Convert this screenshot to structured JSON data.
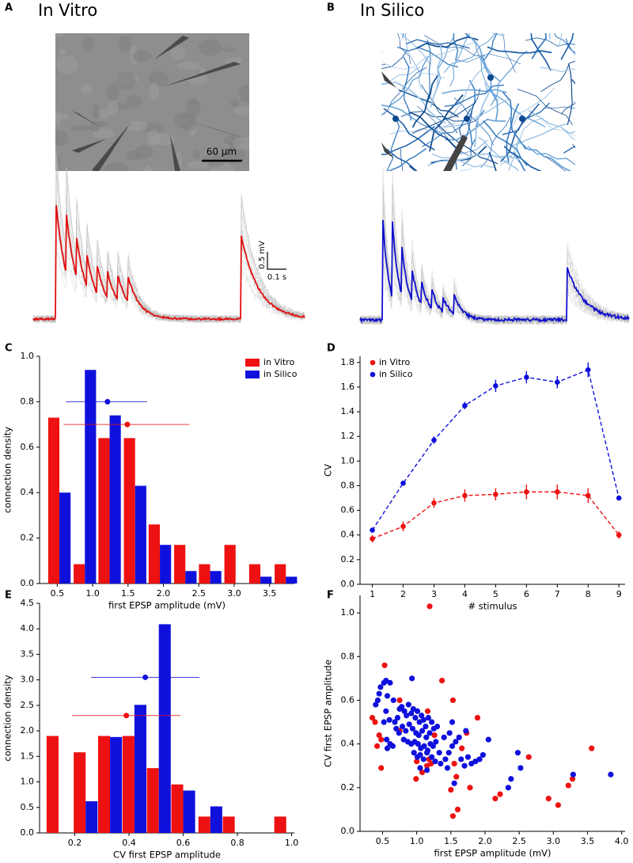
{
  "figure": {
    "panels": [
      {
        "label": "A",
        "title": "In Vitro",
        "image_scale": "60 μm",
        "trace_scale_y": "0.5 mV",
        "trace_scale_x": "0.1 s"
      },
      {
        "label": "B",
        "title": "In Silico"
      }
    ]
  },
  "chart_data": [
    {
      "panel_label": "C",
      "type": "bar",
      "xlabel": "first EPSP amplitude (mV)",
      "ylabel": "connection density",
      "x": [
        0.53,
        0.89,
        1.24,
        1.6,
        1.95,
        2.31,
        2.66,
        3.02,
        3.37,
        3.73
      ],
      "series": [
        {
          "name": "in Vitro",
          "color": "#ee1111",
          "values": [
            0.73,
            0.085,
            0.64,
            0.64,
            0.26,
            0.17,
            0.085,
            0.17,
            0.085,
            0.085
          ],
          "mean_x": 1.49,
          "mean_y": 0.7,
          "spread": [
            0.59,
            2.37
          ]
        },
        {
          "name": "in Silico",
          "color": "#1010dd",
          "values": [
            0.4,
            0.94,
            0.74,
            0.43,
            0.17,
            0.055,
            0.055,
            0,
            0.03,
            0.03
          ],
          "mean_x": 1.21,
          "mean_y": 0.8,
          "spread": [
            0.62,
            1.77
          ]
        }
      ],
      "xlim": [
        0.25,
        3.85
      ],
      "ylim": [
        0,
        1.0
      ],
      "xticks": [
        0.5,
        {
          "value": 1,
          "label": "1.0"
        },
        1.5,
        {
          "value": 2,
          "label": "2.0"
        },
        2.5,
        {
          "value": 3,
          "label": "3.0"
        },
        3.5
      ],
      "yticks": [
        {
          "value": 0,
          "label": "0.0"
        },
        0.2,
        0.4,
        0.6,
        0.8,
        {
          "value": 1,
          "label": "1.0"
        }
      ],
      "legend": "upper right"
    },
    {
      "panel_label": "D",
      "type": "line",
      "xlabel": "# stimulus",
      "ylabel": "CV",
      "x": [
        1,
        2,
        3,
        4,
        5,
        6,
        7,
        8,
        9
      ],
      "series": [
        {
          "name": "in Vitro",
          "color": "#ee1111",
          "values": [
            0.37,
            0.47,
            0.66,
            0.72,
            0.73,
            0.75,
            0.75,
            0.72,
            0.4
          ],
          "errors": [
            0.03,
            0.04,
            0.04,
            0.05,
            0.05,
            0.06,
            0.06,
            0.06,
            0.03
          ]
        },
        {
          "name": "in Silico",
          "color": "#1010dd",
          "values": [
            0.44,
            0.82,
            1.17,
            1.45,
            1.61,
            1.68,
            1.64,
            1.74,
            0.7
          ],
          "errors": [
            0.01,
            0.01,
            0.03,
            0.03,
            0.05,
            0.05,
            0.05,
            0.06,
            0.01
          ]
        }
      ],
      "linestyle": "dashed",
      "xlim": [
        0.6,
        9.2
      ],
      "ylim": [
        0,
        1.85
      ],
      "xticks": [
        1,
        2,
        3,
        4,
        5,
        6,
        7,
        8,
        9
      ],
      "yticks": [
        {
          "value": 0,
          "label": "0.0"
        },
        0.2,
        0.4,
        0.6,
        0.8,
        {
          "value": 1,
          "label": "1.0"
        },
        1.2,
        1.4,
        1.6,
        1.8
      ],
      "legend": "upper left"
    },
    {
      "panel_label": "E",
      "type": "bar",
      "xlabel": "CV first EPSP amplitude",
      "ylabel": "connection density",
      "x": [
        0.14,
        0.24,
        0.33,
        0.42,
        0.51,
        0.6,
        0.7,
        0.79,
        0.88,
        0.98
      ],
      "series": [
        {
          "name": "in Vitro",
          "color": "#ee1111",
          "values": [
            1.9,
            1.58,
            1.9,
            1.9,
            1.27,
            0.95,
            0.32,
            0.32,
            0,
            0.32
          ],
          "mean_x": 0.39,
          "mean_y": 2.3,
          "spread": [
            0.19,
            0.59
          ]
        },
        {
          "name": "in Silico",
          "color": "#1010dd",
          "values": [
            0,
            0.62,
            1.88,
            2.51,
            4.09,
            0.83,
            0.52,
            0,
            0,
            0
          ],
          "mean_x": 0.46,
          "mean_y": 3.05,
          "spread": [
            0.26,
            0.66
          ]
        }
      ],
      "xlim": [
        0.07,
        1.01
      ],
      "ylim": [
        0,
        4.5
      ],
      "xticks": [
        0.2,
        0.4,
        0.6,
        0.8,
        {
          "value": 1,
          "label": "1.0"
        }
      ],
      "yticks": [
        {
          "value": 0,
          "label": "0.0"
        },
        0.5,
        {
          "value": 1,
          "label": "1.0"
        },
        1.5,
        {
          "value": 2,
          "label": "2.0"
        },
        2.5,
        {
          "value": 3,
          "label": "3.0"
        },
        3.5,
        {
          "value": 4,
          "label": "4.0"
        },
        4.5
      ]
    },
    {
      "panel_label": "F",
      "type": "scatter",
      "xlabel": "first EPSP amplitude (mV)",
      "ylabel": "CV first EPSP amplitude",
      "series": [
        {
          "color": "#ee1111",
          "x": [
            1.19,
            0.53,
            1.37,
            0.35,
            0.39,
            0.75,
            1.53,
            1.89,
            1.16,
            0.45,
            0.48,
            0.42,
            0.48,
            0.75,
            1.18,
            1.21,
            1.15,
            0.99,
            1.08,
            1.55,
            1.5,
            1.53,
            1.6,
            1.58,
            1.66,
            1.73,
            1.78,
            2.15,
            2.22,
            2.64,
            2.93,
            3.07,
            3.22,
            3.28,
            3.56,
            1.26,
            1.0
          ],
          "values": [
            1.03,
            0.76,
            0.69,
            0.52,
            0.5,
            0.6,
            0.6,
            0.52,
            0.55,
            0.44,
            0.42,
            0.39,
            0.29,
            0.46,
            0.33,
            0.31,
            0.3,
            0.24,
            0.27,
            0.31,
            0.19,
            0.07,
            0.1,
            0.25,
            0.38,
            0.45,
            0.2,
            0.15,
            0.17,
            0.34,
            0.15,
            0.12,
            0.21,
            0.24,
            0.38,
            0.44,
            0.32
          ]
        },
        {
          "color": "#1010dd",
          "x": [
            0.55,
            0.52,
            0.47,
            0.61,
            0.93,
            0.45,
            0.4,
            0.43,
            0.57,
            0.66,
            0.55,
            0.52,
            0.6,
            0.68,
            0.72,
            0.75,
            0.78,
            0.82,
            0.85,
            0.88,
            0.92,
            0.95,
            0.98,
            1.01,
            1.04,
            1.07,
            1.1,
            1.13,
            1.17,
            1.22,
            0.7,
            0.74,
            0.79,
            0.84,
            0.89,
            0.94,
            0.99,
            1.03,
            1.08,
            1.14,
            1.19,
            1.25,
            1.3,
            0.56,
            0.61,
            0.65,
            0.57,
            0.81,
            0.87,
            0.92,
            0.97,
            1.02,
            1.06,
            1.11,
            1.16,
            1.2,
            1.24,
            1.28,
            1.33,
            0.96,
            1.01,
            1.05,
            1.1,
            1.15,
            1.22,
            1.27,
            1.35,
            1.42,
            1.47,
            1.52,
            1.57,
            1.48,
            1.52,
            1.65,
            1.7,
            1.75,
            1.8,
            1.86,
            1.92,
            1.97,
            2.05,
            1.62,
            1.72,
            1.4,
            1.45,
            1.05,
            1.15,
            2.48,
            2.52,
            2.38,
            2.34,
            3.29,
            3.84,
            1.55
          ],
          "values": [
            0.69,
            0.68,
            0.66,
            0.68,
            0.7,
            0.63,
            0.58,
            0.6,
            0.62,
            0.6,
            0.55,
            0.5,
            0.51,
            0.5,
            0.52,
            0.56,
            0.57,
            0.55,
            0.53,
            0.58,
            0.54,
            0.56,
            0.52,
            0.55,
            0.5,
            0.53,
            0.51,
            0.48,
            0.52,
            0.5,
            0.47,
            0.45,
            0.48,
            0.46,
            0.49,
            0.47,
            0.45,
            0.44,
            0.46,
            0.43,
            0.45,
            0.47,
            0.48,
            0.42,
            0.4,
            0.39,
            0.38,
            0.42,
            0.41,
            0.4,
            0.41,
            0.4,
            0.38,
            0.39,
            0.37,
            0.4,
            0.39,
            0.41,
            0.36,
            0.36,
            0.34,
            0.35,
            0.33,
            0.36,
            0.34,
            0.32,
            0.31,
            0.33,
            0.36,
            0.39,
            0.41,
            0.45,
            0.5,
            0.33,
            0.3,
            0.34,
            0.31,
            0.32,
            0.33,
            0.35,
            0.42,
            0.43,
            0.46,
            0.43,
            0.29,
            0.29,
            0.28,
            0.36,
            0.29,
            0.24,
            0.2,
            0.26,
            0.26,
            0.22
          ]
        }
      ],
      "xlim": [
        0.17,
        4.05
      ],
      "ylim": [
        0,
        1.08
      ],
      "xticks": [
        0.5,
        {
          "value": 1,
          "label": "1.0"
        },
        1.5,
        {
          "value": 2,
          "label": "2.0"
        },
        2.5,
        {
          "value": 3,
          "label": "3.0"
        },
        3.5,
        {
          "value": 4,
          "label": "4.0"
        }
      ],
      "yticks": [
        {
          "value": 0,
          "label": "0.0"
        },
        0.2,
        0.4,
        0.6,
        0.8,
        {
          "value": 1,
          "label": "1.0"
        }
      ]
    }
  ]
}
